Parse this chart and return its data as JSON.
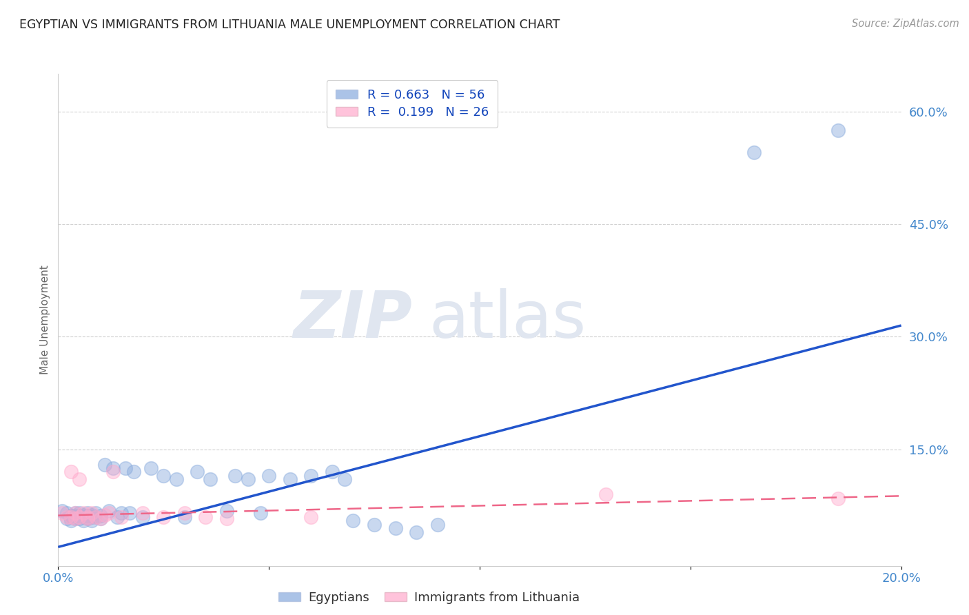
{
  "title": "EGYPTIAN VS IMMIGRANTS FROM LITHUANIA MALE UNEMPLOYMENT CORRELATION CHART",
  "source": "Source: ZipAtlas.com",
  "ylabel": "Male Unemployment",
  "yticks": [
    0.0,
    0.15,
    0.3,
    0.45,
    0.6
  ],
  "ytick_labels": [
    "",
    "15.0%",
    "30.0%",
    "45.0%",
    "60.0%"
  ],
  "xlim": [
    0.0,
    0.2
  ],
  "ylim": [
    -0.005,
    0.65
  ],
  "watermark_zip": "ZIP",
  "watermark_atlas": "atlas",
  "legend_r1": "R = 0.663   N = 56",
  "legend_r2": "R =  0.199   N = 26",
  "blue_color": "#88AADD",
  "pink_color": "#FFAACC",
  "line_blue": "#2255CC",
  "line_pink": "#EE6688",
  "egyptians_x": [
    0.001,
    0.002,
    0.002,
    0.003,
    0.003,
    0.003,
    0.004,
    0.004,
    0.004,
    0.005,
    0.005,
    0.005,
    0.006,
    0.006,
    0.006,
    0.007,
    0.007,
    0.007,
    0.008,
    0.008,
    0.008,
    0.009,
    0.009,
    0.01,
    0.01,
    0.011,
    0.012,
    0.013,
    0.014,
    0.015,
    0.016,
    0.017,
    0.018,
    0.02,
    0.022,
    0.025,
    0.028,
    0.03,
    0.033,
    0.036,
    0.04,
    0.042,
    0.045,
    0.048,
    0.05,
    0.055,
    0.06,
    0.065,
    0.068,
    0.07,
    0.075,
    0.08,
    0.085,
    0.09,
    0.165,
    0.185
  ],
  "egyptians_y": [
    0.068,
    0.065,
    0.058,
    0.06,
    0.055,
    0.062,
    0.058,
    0.062,
    0.065,
    0.058,
    0.062,
    0.065,
    0.06,
    0.055,
    0.063,
    0.062,
    0.058,
    0.065,
    0.06,
    0.055,
    0.063,
    0.06,
    0.065,
    0.058,
    0.062,
    0.13,
    0.068,
    0.125,
    0.06,
    0.065,
    0.125,
    0.065,
    0.12,
    0.06,
    0.125,
    0.115,
    0.11,
    0.06,
    0.12,
    0.11,
    0.068,
    0.115,
    0.11,
    0.065,
    0.115,
    0.11,
    0.115,
    0.12,
    0.11,
    0.055,
    0.05,
    0.045,
    0.04,
    0.05,
    0.545,
    0.575
  ],
  "lithuania_x": [
    0.001,
    0.002,
    0.003,
    0.003,
    0.004,
    0.004,
    0.005,
    0.005,
    0.006,
    0.007,
    0.007,
    0.008,
    0.009,
    0.01,
    0.011,
    0.012,
    0.013,
    0.015,
    0.02,
    0.025,
    0.03,
    0.035,
    0.04,
    0.06,
    0.13,
    0.185
  ],
  "lithuania_y": [
    0.065,
    0.06,
    0.12,
    0.06,
    0.065,
    0.058,
    0.06,
    0.11,
    0.065,
    0.06,
    0.058,
    0.065,
    0.06,
    0.058,
    0.063,
    0.065,
    0.12,
    0.06,
    0.065,
    0.06,
    0.065,
    0.06,
    0.058,
    0.06,
    0.09,
    0.085
  ],
  "blue_line_x": [
    0.0,
    0.2
  ],
  "blue_line_y": [
    0.02,
    0.315
  ],
  "pink_line_x": [
    0.0,
    0.2
  ],
  "pink_line_y": [
    0.062,
    0.088
  ],
  "grid_color": "#CCCCCC",
  "bg_color": "#FFFFFF"
}
